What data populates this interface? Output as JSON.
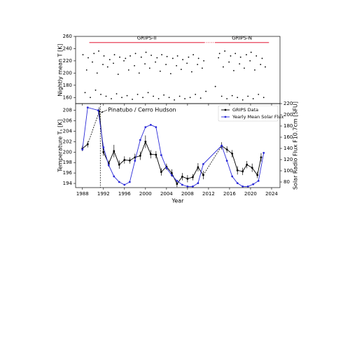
{
  "chart_data": [
    {
      "type": "scatter",
      "ylabel": "Nightly mean T [K]",
      "xlim": [
        1986.7,
        2025.6
      ],
      "ylim": [
        150,
        260
      ],
      "yticks": [
        160,
        180,
        200,
        220,
        240,
        260
      ],
      "color": "#000000",
      "periods": [
        {
          "label": "GRIPS-II",
          "start": 1989.3,
          "end": 2011.2,
          "color": "#e8435a"
        },
        {
          "label": "GRIPS-N",
          "start": 2013.2,
          "end": 2023.5,
          "color": "#e8435a"
        }
      ],
      "period_level": 250,
      "x": [
        1988.1,
        1988.5,
        1988.8,
        1989.1,
        1989.5,
        1989.9,
        1990.2,
        1990.5,
        1990.8,
        1991.1,
        1991.5,
        1991.9,
        1992.1,
        1992.5,
        1992.8,
        1993.2,
        1993.5,
        1993.9,
        1994.1,
        1994.5,
        1994.8,
        1995.1,
        1995.5,
        1995.9,
        1996.2,
        1996.5,
        1996.8,
        1997.1,
        1997.5,
        1997.9,
        1998.1,
        1998.5,
        1998.8,
        1999.2,
        1999.5,
        1999.9,
        2000.1,
        2000.5,
        2000.8,
        2001.1,
        2001.5,
        2001.9,
        2002.2,
        2002.5,
        2002.8,
        2003.1,
        2003.5,
        2003.9,
        2004.1,
        2004.5,
        2004.8,
        2005.2,
        2005.5,
        2005.9,
        2006.1,
        2006.5,
        2006.8,
        2007.1,
        2007.5,
        2007.9,
        2008.2,
        2008.5,
        2008.8,
        2009.1,
        2009.5,
        2009.9,
        2010.1,
        2010.5,
        2010.8,
        2011.1,
        2011.5,
        2013.3,
        2013.9,
        2014.1,
        2014.5,
        2014.8,
        2015.1,
        2015.5,
        2015.9,
        2016.2,
        2016.5,
        2016.8,
        2017.1,
        2017.5,
        2017.9,
        2018.1,
        2018.5,
        2018.8,
        2019.2,
        2019.5,
        2019.9,
        2020.1,
        2020.5,
        2020.8,
        2021.1,
        2021.5,
        2021.9,
        2022.2,
        2022.5,
        2022.8
      ],
      "values": [
        230,
        168,
        205,
        225,
        160,
        218,
        232,
        172,
        200,
        236,
        165,
        214,
        228,
        162,
        210,
        222,
        158,
        216,
        230,
        166,
        198,
        226,
        160,
        220,
        224,
        163,
        205,
        228,
        157,
        212,
        232,
        165,
        200,
        226,
        160,
        215,
        234,
        168,
        208,
        229,
        162,
        218,
        225,
        158,
        203,
        230,
        164,
        214,
        227,
        160,
        199,
        224,
        156,
        212,
        228,
        162,
        206,
        222,
        158,
        216,
        226,
        160,
        202,
        230,
        165,
        214,
        224,
        159,
        208,
        220,
        170,
        178,
        225,
        232,
        162,
        210,
        236,
        158,
        218,
        228,
        163,
        204,
        232,
        160,
        215,
        226,
        156,
        208,
        230,
        162,
        220,
        234,
        158,
        205,
        228,
        165,
        214,
        224,
        160,
        210
      ]
    },
    {
      "type": "line",
      "xlabel": "Year",
      "ylabel": "Temperature Tₛ [K]",
      "y2label": "Solar Radio Flux F10.7cm [SFU]",
      "xlim": [
        1986.7,
        2025.6
      ],
      "xticks": [
        1988,
        1992,
        1996,
        2000,
        2004,
        2008,
        2012,
        2016,
        2020,
        2024
      ],
      "ylim": [
        193.2,
        209.3
      ],
      "yticks": [
        194,
        196,
        198,
        200,
        202,
        204,
        206,
        208
      ],
      "y2lim": [
        70,
        220
      ],
      "y2ticks": [
        80,
        100,
        120,
        140,
        160,
        180,
        200,
        220
      ],
      "legend": "upper right",
      "annotation": {
        "text": "Pinatubo / Cerro Hudson",
        "x": 1991.4
      },
      "series": [
        {
          "name": "GRIPS Data",
          "color": "#000000",
          "x": [
            1988,
            1989,
            1990,
            1991.2,
            1992,
            1993,
            1994,
            1995,
            1996,
            1997,
            1998,
            1999,
            2000,
            2001,
            2002,
            2003,
            2004,
            2005,
            2006,
            2007,
            2008,
            2009,
            2010,
            2011,
            2013,
            2014.5,
            2015.5,
            2016.5,
            2017.5,
            2018.5,
            2019.3,
            2020.3,
            2021.3,
            2022
          ],
          "values": [
            200.7,
            201.5,
            null,
            207.8,
            200,
            197.8,
            200.2,
            197.6,
            198.5,
            198.4,
            199,
            199.3,
            202,
            199.6,
            199.5,
            196.2,
            197.2,
            196,
            193.9,
            195.3,
            194.9,
            195.2,
            197.1,
            195.6,
            null,
            201.2,
            200.5,
            199.7,
            196.5,
            196.3,
            197.6,
            197,
            195.6,
            199
          ],
          "errors": [
            0.5,
            0.6,
            null,
            0.8,
            0.7,
            0.6,
            1.2,
            0.8,
            0.7,
            0.6,
            0.7,
            0.8,
            1.2,
            0.8,
            0.7,
            0.7,
            0.6,
            0.7,
            0.6,
            0.7,
            0.7,
            0.6,
            0.8,
            0.8,
            null,
            0.7,
            0.6,
            0.7,
            0.8,
            0.7,
            0.7,
            0.8,
            0.6,
            0.8
          ]
        },
        {
          "name": "Yearly Mean Solar Flux",
          "color": "#2a2ad8",
          "axis": "y2",
          "x": [
            1988,
            1989,
            1991,
            1992,
            1993,
            1994,
            1995,
            1996,
            1997,
            1998,
            1999,
            2000,
            2001,
            2002,
            2003,
            2004,
            2005,
            2006,
            2007,
            2008,
            2009,
            2010,
            2011,
            2014.5,
            2015.5,
            2016.5,
            2017.5,
            2018.5,
            2019.5,
            2020.5,
            2021.5,
            2022.5
          ],
          "values": [
            138,
            213,
            208,
            142,
            110,
            90,
            80,
            75,
            80,
            118,
            155,
            178,
            182,
            178,
            128,
            105,
            92,
            82,
            75,
            72,
            72,
            78,
            112,
            145,
            118,
            90,
            78,
            72,
            72,
            76,
            82,
            132
          ]
        }
      ]
    }
  ]
}
